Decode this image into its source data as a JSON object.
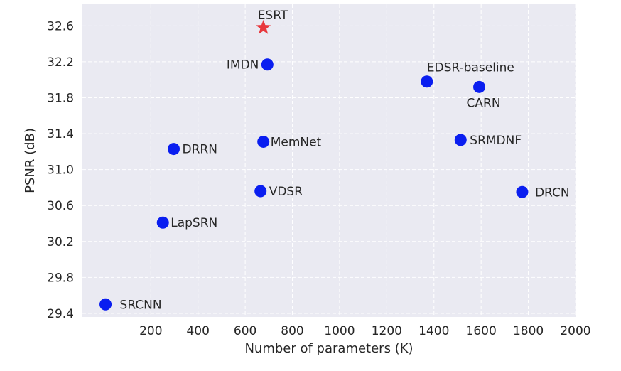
{
  "chart_data": {
    "type": "scatter",
    "title": "",
    "xlabel": "Number of parameters (K)",
    "ylabel": "PSNR (dB)",
    "xlim": [
      -90,
      2000
    ],
    "ylim": [
      29.36,
      32.84
    ],
    "xticks": [
      200,
      400,
      600,
      800,
      1000,
      1200,
      1400,
      1600,
      1800,
      2000
    ],
    "yticks": [
      29.4,
      29.8,
      30.2,
      30.6,
      31.0,
      31.4,
      31.8,
      32.2,
      32.6
    ],
    "grid": true,
    "background": "#eaeaf2",
    "marker_color": "#0a1ef0",
    "highlight_color": "#e8383d",
    "points": [
      {
        "name": "ESRT",
        "x": 677,
        "y": 32.58,
        "marker": "star"
      },
      {
        "name": "IMDN",
        "x": 694,
        "y": 32.17,
        "marker": "circle"
      },
      {
        "name": "EDSR-baseline",
        "x": 1370,
        "y": 31.98,
        "marker": "circle"
      },
      {
        "name": "CARN",
        "x": 1592,
        "y": 31.92,
        "marker": "circle"
      },
      {
        "name": "DRRN",
        "x": 297,
        "y": 31.23,
        "marker": "circle"
      },
      {
        "name": "MemNet",
        "x": 677,
        "y": 31.31,
        "marker": "circle"
      },
      {
        "name": "SRMDNF",
        "x": 1513,
        "y": 31.33,
        "marker": "circle"
      },
      {
        "name": "VDSR",
        "x": 665,
        "y": 30.76,
        "marker": "circle"
      },
      {
        "name": "DRCN",
        "x": 1774,
        "y": 30.75,
        "marker": "circle"
      },
      {
        "name": "LapSRN",
        "x": 251,
        "y": 30.41,
        "marker": "circle"
      },
      {
        "name": "SRCNN",
        "x": 8,
        "y": 29.5,
        "marker": "circle"
      }
    ]
  }
}
